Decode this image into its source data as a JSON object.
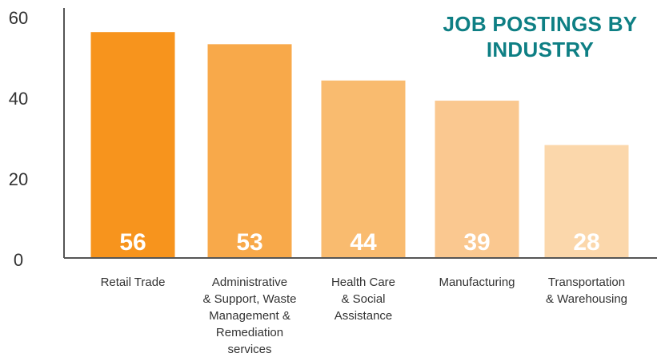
{
  "chart_data": {
    "type": "bar",
    "title_lines": [
      "JOB POSTINGS BY",
      "INDUSTRY"
    ],
    "categories": [
      [
        "Retail Trade"
      ],
      [
        "Administrative",
        "& Support, Waste",
        "Management &",
        "Remediation",
        "services"
      ],
      [
        "Health Care",
        "& Social",
        "Assistance"
      ],
      [
        "Manufacturing"
      ],
      [
        "Transportation",
        "& Warehousing"
      ]
    ],
    "values": [
      56,
      53,
      44,
      39,
      28
    ],
    "data_labels": [
      "56",
      "53",
      "44",
      "39",
      "28"
    ],
    "colors": [
      "#f7941d",
      "#f8a94a",
      "#f9bb6f",
      "#fac890",
      "#fbd7ab"
    ],
    "label_color": "#ffffff",
    "axis_color": "#555555",
    "tick_color": "#333333",
    "title_color": "#0e7f84",
    "ylim": [
      0,
      60
    ],
    "yticks": [
      0,
      20,
      40,
      60
    ],
    "ytick_labels": [
      "0",
      "20",
      "40",
      "60"
    ],
    "grid": false,
    "xlabel": "",
    "ylabel": ""
  }
}
